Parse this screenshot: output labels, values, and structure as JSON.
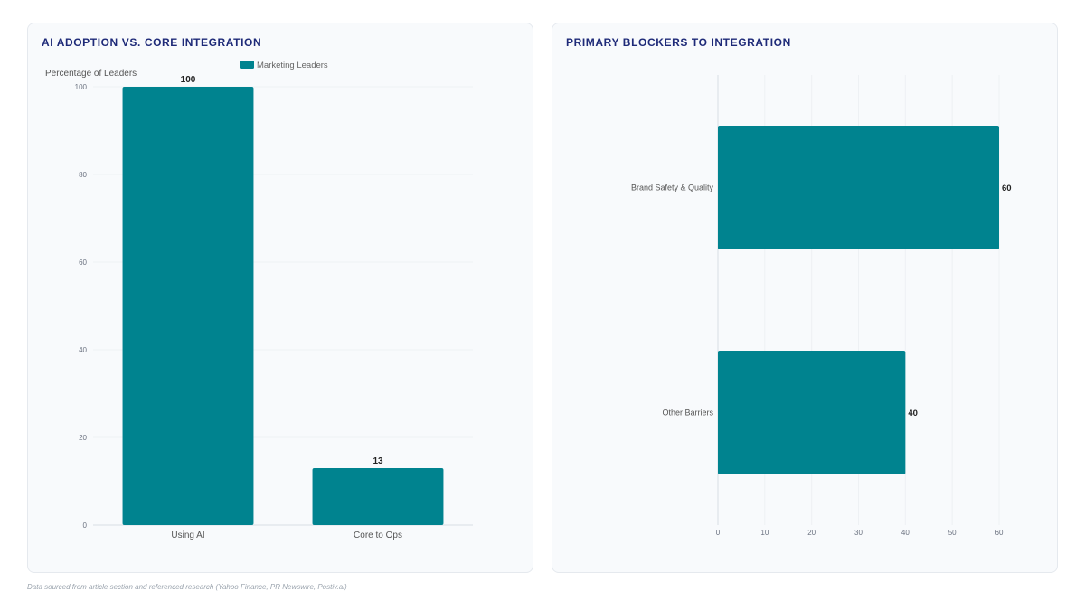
{
  "charts": {
    "left": {
      "title": "AI ADOPTION VS. CORE INTEGRATION"
    },
    "right": {
      "title": "PRIMARY BLOCKERS TO INTEGRATION"
    }
  },
  "footer": "Data sourced from article section and referenced research (Yahoo Finance, PR Newswire, Postiv.ai)",
  "colors": {
    "bar": "#00838f",
    "title": "#1e2a78",
    "grid": "#eef1f4",
    "card": "#f8fafc"
  },
  "chart_data": [
    {
      "type": "bar",
      "title": "AI ADOPTION VS. CORE INTEGRATION",
      "categories": [
        "Using AI",
        "Core to Ops"
      ],
      "series": [
        {
          "name": "Marketing Leaders",
          "values": [
            100,
            13
          ]
        }
      ],
      "xlabel": "",
      "ylabel": "Percentage of Leaders",
      "ylim": [
        0,
        100
      ],
      "yticks": [
        "0",
        "20",
        "40",
        "60",
        "80",
        "100"
      ],
      "data_labels": [
        "100",
        "13"
      ],
      "legend": "top-center",
      "grid": true
    },
    {
      "type": "bar",
      "orientation": "horizontal",
      "title": "PRIMARY BLOCKERS TO INTEGRATION",
      "categories": [
        "Brand Safety & Quality",
        "Other Barriers"
      ],
      "values": [
        60,
        40
      ],
      "xlim": [
        0,
        60
      ],
      "xticks": [
        "0",
        "10",
        "20",
        "30",
        "40",
        "50",
        "60"
      ],
      "data_labels": [
        "60",
        "40"
      ],
      "grid": true
    }
  ]
}
